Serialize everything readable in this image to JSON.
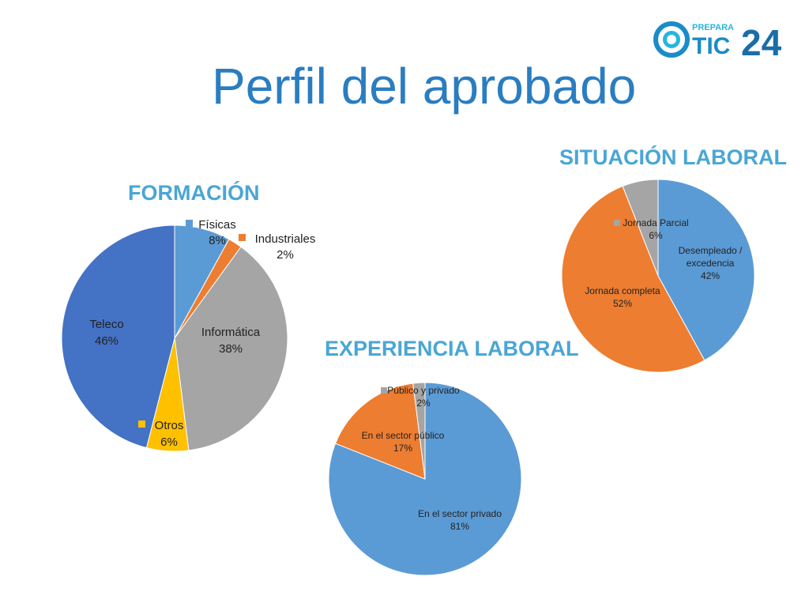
{
  "slide": {
    "title": "Perfil del aprobado"
  },
  "logo": {
    "small_text": "PREPARA",
    "text_tic": "TIC",
    "text_num": "24"
  },
  "colors": {
    "title": "#2a7dc0",
    "section": "#4aa6d4",
    "dark_blue": "#4472c4",
    "light_blue": "#5b9bd5",
    "orange": "#ed7d31",
    "gray": "#a5a5a5",
    "yellow": "#ffc000"
  },
  "chart_data": [
    {
      "type": "pie",
      "title": "FORMACIÓN",
      "slices": [
        {
          "name": "Físicas",
          "value": 8,
          "label": "8%",
          "color": "#5b9bd5"
        },
        {
          "name": "Industriales",
          "value": 2,
          "label": "2%",
          "color": "#ed7d31"
        },
        {
          "name": "Informática",
          "value": 38,
          "label": "38%",
          "color": "#a5a5a5"
        },
        {
          "name": "Otros",
          "value": 6,
          "label": "6%",
          "color": "#ffc000"
        },
        {
          "name": "Teleco",
          "value": 46,
          "label": "46%",
          "color": "#4472c4"
        }
      ]
    },
    {
      "type": "pie",
      "title": "SITUACIÓN LABORAL",
      "slices": [
        {
          "name": "Desempleado / excedencia",
          "name_lines": [
            "Desempleado /",
            "excedencia"
          ],
          "value": 42,
          "label": "42%",
          "color": "#5b9bd5"
        },
        {
          "name": "Jornada completa",
          "name_lines": [
            "Jornada completa"
          ],
          "value": 52,
          "label": "52%",
          "color": "#ed7d31"
        },
        {
          "name": "Jornada Parcial",
          "name_lines": [
            "Jornada Parcial"
          ],
          "value": 6,
          "label": "6%",
          "color": "#a5a5a5"
        }
      ]
    },
    {
      "type": "pie",
      "title": "EXPERIENCIA LABORAL",
      "slices": [
        {
          "name": "En el sector privado",
          "name_lines": [
            "En el sector privado"
          ],
          "value": 81,
          "label": "81%",
          "color": "#5b9bd5"
        },
        {
          "name": "En el sector público",
          "name_lines": [
            "En el sector público"
          ],
          "value": 17,
          "label": "17%",
          "color": "#ed7d31"
        },
        {
          "name": "Público y privado",
          "name_lines": [
            "Público y privado"
          ],
          "value": 2,
          "label": "2%",
          "color": "#a5a5a5"
        }
      ]
    }
  ]
}
